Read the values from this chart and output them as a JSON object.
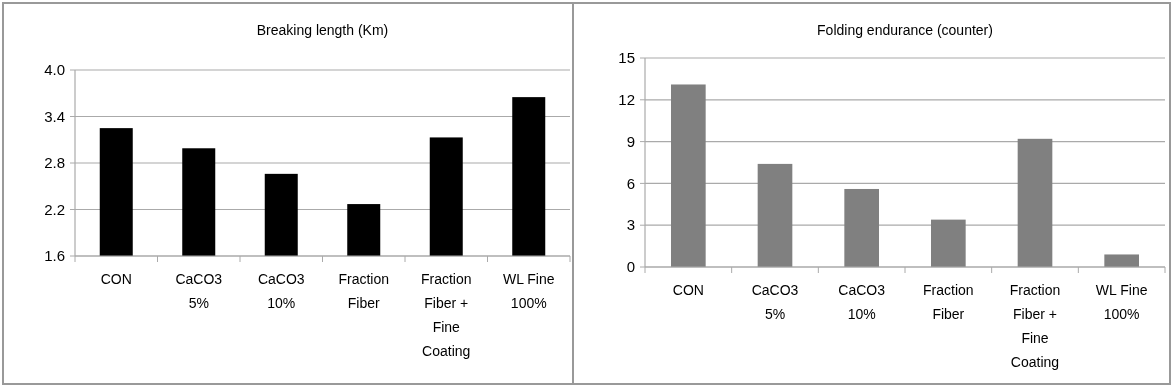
{
  "chart_data": [
    {
      "type": "bar",
      "title": "Breaking length (Km)",
      "categories": [
        "CON",
        "CaCO3 5%",
        "CaCO3 10%",
        "Fraction Fiber",
        "Fraction Fiber + Fine Coating",
        "WL Fine 100%"
      ],
      "values": [
        3.25,
        2.99,
        2.66,
        2.27,
        3.13,
        3.65
      ],
      "color": "#000000",
      "ylim": [
        1.6,
        4.0
      ],
      "yticks": [
        1.6,
        2.2,
        2.8,
        3.4,
        {
          "value": 4,
          "label": "4.0"
        }
      ],
      "grid": "y"
    },
    {
      "type": "bar",
      "title": "Folding endurance (counter)",
      "categories": [
        "CON",
        "CaCO3 5%",
        "CaCO3 10%",
        "Fraction Fiber",
        "Fraction Fiber + Fine Coating",
        "WL Fine 100%"
      ],
      "values": [
        13.1,
        7.4,
        5.6,
        3.4,
        9.2,
        0.9
      ],
      "color": "#808080",
      "ylim": [
        0,
        15
      ],
      "yticks": [
        0,
        3,
        6,
        9,
        12,
        15
      ],
      "grid": "y"
    }
  ]
}
